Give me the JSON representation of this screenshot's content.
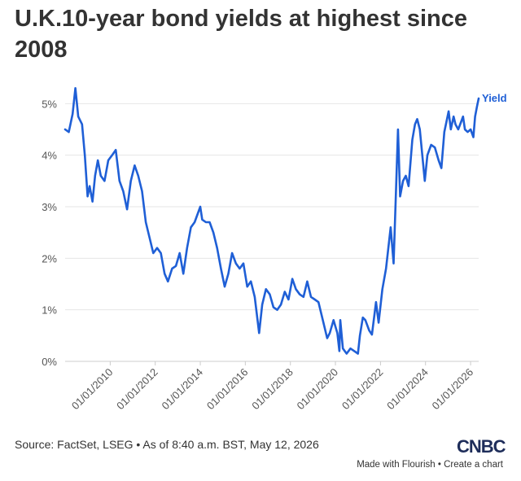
{
  "header": {
    "title": "U.K.10-year bond yields at highest since 2008"
  },
  "footer": {
    "source": "Source: FactSet, LSEG • As of 8:40 a.m. BST, May 12, 2026",
    "logo": "CNBC",
    "made_with": "Made with Flourish",
    "separator": " • ",
    "create_chart": "Create a chart"
  },
  "colors": {
    "line": "#1f5fd6",
    "label": "#1f5fd6",
    "grid": "#e6e6e6",
    "axis_text": "#555555"
  },
  "chart_data": {
    "type": "line",
    "title": "U.K.10-year bond yields at highest since 2008",
    "xlabel": "",
    "ylabel": "",
    "x_range": [
      "2008-01-01",
      "2026-05-12"
    ],
    "ylim": [
      0,
      5.4
    ],
    "y_ticks": [
      0,
      1,
      2,
      3,
      4,
      5
    ],
    "y_tick_labels": [
      "0%",
      "1%",
      "2%",
      "3%",
      "4%",
      "5%"
    ],
    "x_ticks": [
      "2010-01-01",
      "2012-01-01",
      "2014-01-01",
      "2016-01-01",
      "2018-01-01",
      "2020-01-01",
      "2022-01-01",
      "2024-01-01",
      "2026-01-01"
    ],
    "x_tick_labels": [
      "01/01/2010",
      "01/01/2012",
      "01/01/2014",
      "01/01/2016",
      "01/01/2018",
      "01/01/2020",
      "01/01/2022",
      "01/01/2024",
      "01/01/2026"
    ],
    "grid": true,
    "series": [
      {
        "name": "Yield",
        "points": [
          [
            "2008-01-01",
            4.5
          ],
          [
            "2008-03-01",
            4.45
          ],
          [
            "2008-05-01",
            4.8
          ],
          [
            "2008-06-15",
            5.3
          ],
          [
            "2008-08-01",
            4.75
          ],
          [
            "2008-10-01",
            4.6
          ],
          [
            "2008-11-15",
            4.0
          ],
          [
            "2008-12-31",
            3.2
          ],
          [
            "2009-02-01",
            3.4
          ],
          [
            "2009-03-20",
            3.1
          ],
          [
            "2009-05-01",
            3.6
          ],
          [
            "2009-06-15",
            3.9
          ],
          [
            "2009-08-01",
            3.6
          ],
          [
            "2009-10-01",
            3.5
          ],
          [
            "2009-12-01",
            3.9
          ],
          [
            "2010-02-01",
            4.0
          ],
          [
            "2010-04-01",
            4.1
          ],
          [
            "2010-06-01",
            3.5
          ],
          [
            "2010-08-01",
            3.3
          ],
          [
            "2010-10-01",
            2.95
          ],
          [
            "2010-12-01",
            3.5
          ],
          [
            "2011-02-01",
            3.8
          ],
          [
            "2011-04-01",
            3.6
          ],
          [
            "2011-06-01",
            3.3
          ],
          [
            "2011-08-01",
            2.7
          ],
          [
            "2011-10-01",
            2.4
          ],
          [
            "2011-12-01",
            2.1
          ],
          [
            "2012-02-01",
            2.2
          ],
          [
            "2012-04-01",
            2.1
          ],
          [
            "2012-06-01",
            1.7
          ],
          [
            "2012-07-25",
            1.55
          ],
          [
            "2012-10-01",
            1.8
          ],
          [
            "2012-12-01",
            1.85
          ],
          [
            "2013-02-01",
            2.1
          ],
          [
            "2013-04-01",
            1.7
          ],
          [
            "2013-06-01",
            2.2
          ],
          [
            "2013-08-01",
            2.6
          ],
          [
            "2013-10-01",
            2.7
          ],
          [
            "2013-12-31",
            3.0
          ],
          [
            "2014-02-01",
            2.75
          ],
          [
            "2014-04-01",
            2.7
          ],
          [
            "2014-06-01",
            2.7
          ],
          [
            "2014-08-01",
            2.5
          ],
          [
            "2014-10-01",
            2.2
          ],
          [
            "2014-12-01",
            1.8
          ],
          [
            "2015-02-01",
            1.45
          ],
          [
            "2015-04-01",
            1.7
          ],
          [
            "2015-06-01",
            2.1
          ],
          [
            "2015-08-01",
            1.9
          ],
          [
            "2015-10-01",
            1.8
          ],
          [
            "2015-12-01",
            1.9
          ],
          [
            "2016-02-01",
            1.45
          ],
          [
            "2016-04-01",
            1.55
          ],
          [
            "2016-06-01",
            1.25
          ],
          [
            "2016-08-12",
            0.55
          ],
          [
            "2016-10-01",
            1.1
          ],
          [
            "2016-12-01",
            1.4
          ],
          [
            "2017-02-01",
            1.3
          ],
          [
            "2017-04-01",
            1.05
          ],
          [
            "2017-06-01",
            1.0
          ],
          [
            "2017-08-01",
            1.1
          ],
          [
            "2017-10-01",
            1.35
          ],
          [
            "2017-12-01",
            1.2
          ],
          [
            "2018-02-01",
            1.6
          ],
          [
            "2018-04-01",
            1.4
          ],
          [
            "2018-06-01",
            1.3
          ],
          [
            "2018-08-01",
            1.25
          ],
          [
            "2018-10-01",
            1.55
          ],
          [
            "2018-12-01",
            1.25
          ],
          [
            "2019-02-01",
            1.2
          ],
          [
            "2019-04-01",
            1.15
          ],
          [
            "2019-06-01",
            0.85
          ],
          [
            "2019-08-20",
            0.45
          ],
          [
            "2019-10-01",
            0.55
          ],
          [
            "2019-12-01",
            0.8
          ],
          [
            "2020-02-01",
            0.55
          ],
          [
            "2020-03-05",
            0.2
          ],
          [
            "2020-03-20",
            0.8
          ],
          [
            "2020-05-01",
            0.25
          ],
          [
            "2020-07-01",
            0.15
          ],
          [
            "2020-09-01",
            0.25
          ],
          [
            "2020-11-01",
            0.2
          ],
          [
            "2020-12-31",
            0.15
          ],
          [
            "2021-02-01",
            0.5
          ],
          [
            "2021-03-20",
            0.85
          ],
          [
            "2021-05-01",
            0.8
          ],
          [
            "2021-07-01",
            0.6
          ],
          [
            "2021-08-15",
            0.52
          ],
          [
            "2021-10-20",
            1.15
          ],
          [
            "2021-12-01",
            0.75
          ],
          [
            "2022-02-01",
            1.4
          ],
          [
            "2022-04-01",
            1.8
          ],
          [
            "2022-06-15",
            2.6
          ],
          [
            "2022-08-01",
            1.9
          ],
          [
            "2022-09-01",
            3.0
          ],
          [
            "2022-10-12",
            4.5
          ],
          [
            "2022-11-15",
            3.2
          ],
          [
            "2023-01-01",
            3.5
          ],
          [
            "2023-02-15",
            3.6
          ],
          [
            "2023-04-01",
            3.4
          ],
          [
            "2023-06-01",
            4.3
          ],
          [
            "2023-07-15",
            4.6
          ],
          [
            "2023-08-20",
            4.7
          ],
          [
            "2023-10-01",
            4.5
          ],
          [
            "2023-12-20",
            3.5
          ],
          [
            "2024-02-01",
            4.0
          ],
          [
            "2024-04-01",
            4.2
          ],
          [
            "2024-06-01",
            4.15
          ],
          [
            "2024-08-01",
            3.9
          ],
          [
            "2024-09-15",
            3.75
          ],
          [
            "2024-11-01",
            4.45
          ],
          [
            "2025-01-10",
            4.85
          ],
          [
            "2025-02-15",
            4.5
          ],
          [
            "2025-04-01",
            4.75
          ],
          [
            "2025-05-01",
            4.6
          ],
          [
            "2025-06-15",
            4.5
          ],
          [
            "2025-08-01",
            4.65
          ],
          [
            "2025-09-01",
            4.75
          ],
          [
            "2025-10-01",
            4.5
          ],
          [
            "2025-11-15",
            4.45
          ],
          [
            "2026-01-01",
            4.5
          ],
          [
            "2026-02-15",
            4.35
          ],
          [
            "2026-03-15",
            4.75
          ],
          [
            "2026-04-15",
            4.95
          ],
          [
            "2026-05-12",
            5.1
          ]
        ]
      }
    ]
  }
}
